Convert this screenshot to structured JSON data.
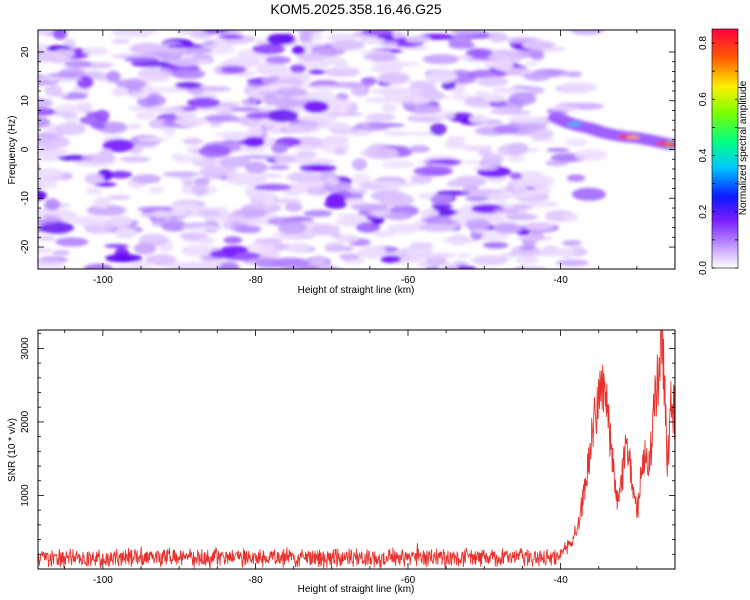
{
  "title": "KOM5.2025.358.16.46.G25",
  "chart_data": [
    {
      "type": "heatmap",
      "name": "spectrogram",
      "xlabel": "Height of straight line (km)",
      "ylabel": "Frequency (Hz)",
      "xlim": [
        -108.5,
        -25
      ],
      "ylim": [
        -24.5,
        24.5
      ],
      "xticks": [
        -100,
        -80,
        -60,
        -40
      ],
      "yticks": [
        -20,
        -10,
        0,
        10,
        20
      ],
      "x_tick_labels": [
        "-100",
        "-80",
        "-60",
        "-40"
      ],
      "y_tick_labels": [
        "-20",
        "-10",
        "0",
        "10",
        "20"
      ],
      "noise_level": 0.1,
      "noise_extent_x": [
        -108.5,
        -37
      ],
      "signal_track": [
        {
          "x": -40.5,
          "f": 6.5,
          "a": 0.4
        },
        {
          "x": -39.0,
          "f": 5.5,
          "a": 0.45
        },
        {
          "x": -37.5,
          "f": 4.8,
          "a": 0.42
        },
        {
          "x": -36.0,
          "f": 4.3,
          "a": 0.38
        },
        {
          "x": -34.5,
          "f": 3.5,
          "a": 0.5
        },
        {
          "x": -33.0,
          "f": 3.0,
          "a": 0.55
        },
        {
          "x": -31.5,
          "f": 2.6,
          "a": 0.6
        },
        {
          "x": -30.0,
          "f": 2.4,
          "a": 0.68
        },
        {
          "x": -28.5,
          "f": 2.0,
          "a": 0.58
        },
        {
          "x": -27.0,
          "f": 1.5,
          "a": 0.62
        },
        {
          "x": -25.5,
          "f": 1.0,
          "a": 0.72
        }
      ],
      "colorbar": {
        "label": "Normalized spectral amplitude",
        "range": [
          0,
          0.85
        ],
        "ticks": [
          0,
          0.2,
          0.4,
          0.6,
          0.8
        ],
        "tick_labels": [
          "0.0",
          "0.2",
          "0.4",
          "0.6",
          "0.8"
        ]
      }
    },
    {
      "type": "line",
      "name": "snr",
      "xlabel": "Height of straight line (km)",
      "ylabel": "SNR (10 * v/v)",
      "xlim": [
        -108.5,
        -25
      ],
      "ylim": [
        0,
        3250
      ],
      "xticks": [
        -100,
        -80,
        -60,
        -40
      ],
      "yticks": [
        1000,
        2000,
        3000
      ],
      "x_tick_labels": [
        "-100",
        "-80",
        "-60",
        "-40"
      ],
      "y_tick_labels": [
        "1000",
        "2000",
        "3000"
      ],
      "color": "#e8322e",
      "noise_baseline": 150,
      "noise_amplitude": 120,
      "envelope": [
        {
          "x": -108.5,
          "y": 150
        },
        {
          "x": -42.0,
          "y": 170
        },
        {
          "x": -40.0,
          "y": 220
        },
        {
          "x": -38.5,
          "y": 350
        },
        {
          "x": -37.5,
          "y": 650
        },
        {
          "x": -36.5,
          "y": 1300
        },
        {
          "x": -35.5,
          "y": 2100
        },
        {
          "x": -34.8,
          "y": 2450
        },
        {
          "x": -34.0,
          "y": 2200
        },
        {
          "x": -33.0,
          "y": 1300
        },
        {
          "x": -32.5,
          "y": 850
        },
        {
          "x": -32.0,
          "y": 1200
        },
        {
          "x": -31.5,
          "y": 1700
        },
        {
          "x": -31.0,
          "y": 1550
        },
        {
          "x": -30.5,
          "y": 1100
        },
        {
          "x": -30.0,
          "y": 700
        },
        {
          "x": -29.5,
          "y": 1200
        },
        {
          "x": -29.0,
          "y": 1650
        },
        {
          "x": -28.5,
          "y": 1300
        },
        {
          "x": -28.0,
          "y": 1900
        },
        {
          "x": -27.5,
          "y": 2400
        },
        {
          "x": -27.0,
          "y": 2800
        },
        {
          "x": -26.7,
          "y": 3200
        },
        {
          "x": -26.3,
          "y": 2300
        },
        {
          "x": -26.0,
          "y": 1400
        },
        {
          "x": -25.6,
          "y": 2300
        },
        {
          "x": -25.0,
          "y": 2100
        }
      ]
    }
  ]
}
